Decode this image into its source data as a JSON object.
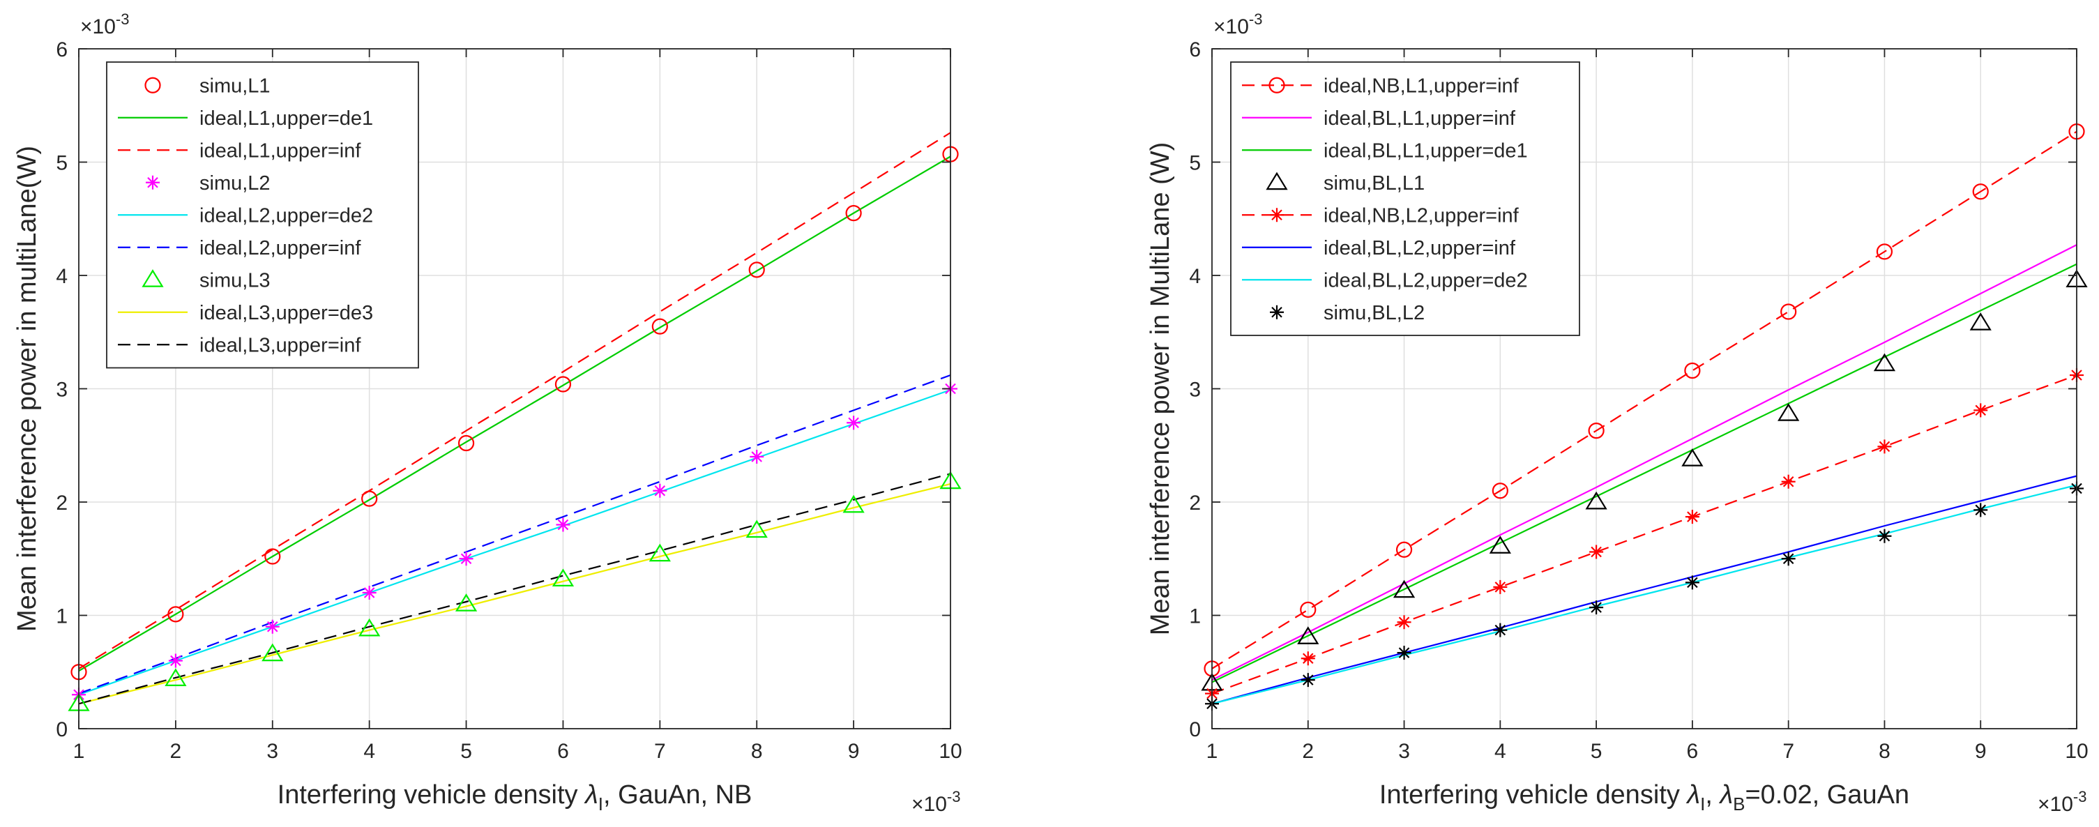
{
  "chart_data": [
    {
      "type": "line",
      "id": "left",
      "xlabel_pre": "Interfering  vehicle  density ",
      "xlabel_lambda": "λ",
      "xlabel_sub": "I",
      "xlabel_post": ", GauAn, NB",
      "ylabel": "Mean  interference  power  in multiLane(W)",
      "x_multiplier": "×10",
      "x_multiplier_exp": "-3",
      "y_multiplier": "×10",
      "y_multiplier_exp": "-3",
      "xlim": [
        1,
        10
      ],
      "ylim": [
        0,
        6
      ],
      "xticks": [
        1,
        2,
        3,
        4,
        5,
        6,
        7,
        8,
        9,
        10
      ],
      "yticks": [
        0,
        1,
        2,
        3,
        4,
        5,
        6
      ],
      "grid": true,
      "legend_position": "top-left",
      "x": [
        1,
        2,
        3,
        4,
        5,
        6,
        7,
        8,
        9,
        10
      ],
      "series": [
        {
          "name": "simu,L1",
          "color": "#ff0000",
          "dash": "none",
          "marker": "circle",
          "line": false,
          "values": [
            0.5,
            1.01,
            1.52,
            2.03,
            2.52,
            3.04,
            3.55,
            4.05,
            4.55,
            5.07
          ]
        },
        {
          "name": "ideal,L1,upper=de1",
          "color": "#00cc00",
          "dash": "solid",
          "marker": "none",
          "line": true,
          "values": [
            0.51,
            1.01,
            1.52,
            2.02,
            2.53,
            3.03,
            3.54,
            4.04,
            4.55,
            5.05
          ]
        },
        {
          "name": "ideal,L1,upper=inf",
          "color": "#ff0000",
          "dash": "dashed",
          "marker": "none",
          "line": true,
          "values": [
            0.53,
            1.05,
            1.58,
            2.1,
            2.63,
            3.15,
            3.68,
            4.2,
            4.73,
            5.26
          ]
        },
        {
          "name": "simu,L2",
          "color": "#ff00ff",
          "dash": "none",
          "marker": "asterisk",
          "line": false,
          "values": [
            0.3,
            0.6,
            0.9,
            1.2,
            1.5,
            1.8,
            2.1,
            2.4,
            2.7,
            3.0
          ]
        },
        {
          "name": "ideal,L2,upper=de2",
          "color": "#00e5ee",
          "dash": "solid",
          "marker": "none",
          "line": true,
          "values": [
            0.3,
            0.6,
            0.9,
            1.2,
            1.5,
            1.79,
            2.09,
            2.39,
            2.69,
            2.99
          ]
        },
        {
          "name": "ideal,L2,upper=inf",
          "color": "#0000ff",
          "dash": "dashed",
          "marker": "none",
          "line": true,
          "values": [
            0.31,
            0.62,
            0.94,
            1.25,
            1.56,
            1.87,
            2.18,
            2.5,
            2.81,
            3.12
          ]
        },
        {
          "name": "simu,L3",
          "color": "#00ee00",
          "dash": "none",
          "marker": "triangle",
          "line": false,
          "values": [
            0.22,
            0.44,
            0.66,
            0.88,
            1.1,
            1.32,
            1.54,
            1.75,
            1.97,
            2.18
          ]
        },
        {
          "name": "ideal,L3,upper=de3",
          "color": "#eeee00",
          "dash": "solid",
          "marker": "none",
          "line": true,
          "values": [
            0.22,
            0.43,
            0.65,
            0.87,
            1.08,
            1.3,
            1.52,
            1.73,
            1.95,
            2.16
          ]
        },
        {
          "name": "ideal,L3,upper=inf",
          "color": "#000000",
          "dash": "dashed",
          "marker": "none",
          "line": true,
          "values": [
            0.22,
            0.45,
            0.67,
            0.9,
            1.12,
            1.35,
            1.57,
            1.8,
            2.02,
            2.25
          ]
        }
      ]
    },
    {
      "type": "line",
      "id": "right",
      "xlabel_pre": "Interfering vehicle density ",
      "xlabel_lambda": "λ",
      "xlabel_sub": "I",
      "xlabel_mid": ",  ",
      "xlabel_lambda2": "λ",
      "xlabel_sub2": "B",
      "xlabel_post": "=0.02, GauAn",
      "ylabel": "Mean  interference  power  in MultiLane (W)",
      "x_multiplier": "×10",
      "x_multiplier_exp": "-3",
      "y_multiplier": "×10",
      "y_multiplier_exp": "-3",
      "xlim": [
        1,
        10
      ],
      "ylim": [
        0,
        6
      ],
      "xticks": [
        1,
        2,
        3,
        4,
        5,
        6,
        7,
        8,
        9,
        10
      ],
      "yticks": [
        0,
        1,
        2,
        3,
        4,
        5,
        6
      ],
      "grid": true,
      "legend_position": "top-left",
      "x": [
        1,
        2,
        3,
        4,
        5,
        6,
        7,
        8,
        9,
        10
      ],
      "series": [
        {
          "name": "ideal,NB,L1,upper=inf",
          "color": "#ff0000",
          "dash": "dashed",
          "marker": "circle",
          "line": true,
          "values": [
            0.53,
            1.05,
            1.58,
            2.1,
            2.63,
            3.16,
            3.68,
            4.21,
            4.74,
            5.27
          ]
        },
        {
          "name": "ideal,BL,L1,upper=inf",
          "color": "#ff00ff",
          "dash": "solid",
          "marker": "none",
          "line": true,
          "values": [
            0.43,
            0.85,
            1.28,
            1.71,
            2.13,
            2.56,
            2.99,
            3.41,
            3.84,
            4.27
          ]
        },
        {
          "name": "ideal,BL,L1,upper=de1",
          "color": "#00cc00",
          "dash": "solid",
          "marker": "none",
          "line": true,
          "values": [
            0.41,
            0.82,
            1.23,
            1.64,
            2.05,
            2.46,
            2.87,
            3.28,
            3.69,
            4.1
          ]
        },
        {
          "name": "simu,BL,L1",
          "color": "#000000",
          "dash": "none",
          "marker": "triangle",
          "line": false,
          "values": [
            0.4,
            0.81,
            1.22,
            1.61,
            2.0,
            2.38,
            2.78,
            3.22,
            3.58,
            3.96
          ]
        },
        {
          "name": "ideal,NB,L2,upper=inf",
          "color": "#ff0000",
          "dash": "dashed",
          "marker": "asterisk",
          "line": true,
          "values": [
            0.31,
            0.62,
            0.94,
            1.25,
            1.56,
            1.87,
            2.18,
            2.49,
            2.81,
            3.12
          ]
        },
        {
          "name": "ideal,BL,L2,upper=inf",
          "color": "#0000ff",
          "dash": "solid",
          "marker": "none",
          "line": true,
          "values": [
            0.22,
            0.45,
            0.67,
            0.89,
            1.12,
            1.34,
            1.56,
            1.79,
            2.01,
            2.23
          ]
        },
        {
          "name": "ideal,BL,L2,upper=de2",
          "color": "#00e5ee",
          "dash": "solid",
          "marker": "none",
          "line": true,
          "values": [
            0.22,
            0.43,
            0.65,
            0.86,
            1.08,
            1.29,
            1.51,
            1.72,
            1.94,
            2.15
          ]
        },
        {
          "name": "simu,BL,L2",
          "color": "#000000",
          "dash": "none",
          "marker": "asterisk",
          "line": false,
          "values": [
            0.22,
            0.43,
            0.67,
            0.87,
            1.07,
            1.29,
            1.5,
            1.7,
            1.93,
            2.12
          ]
        }
      ]
    }
  ]
}
